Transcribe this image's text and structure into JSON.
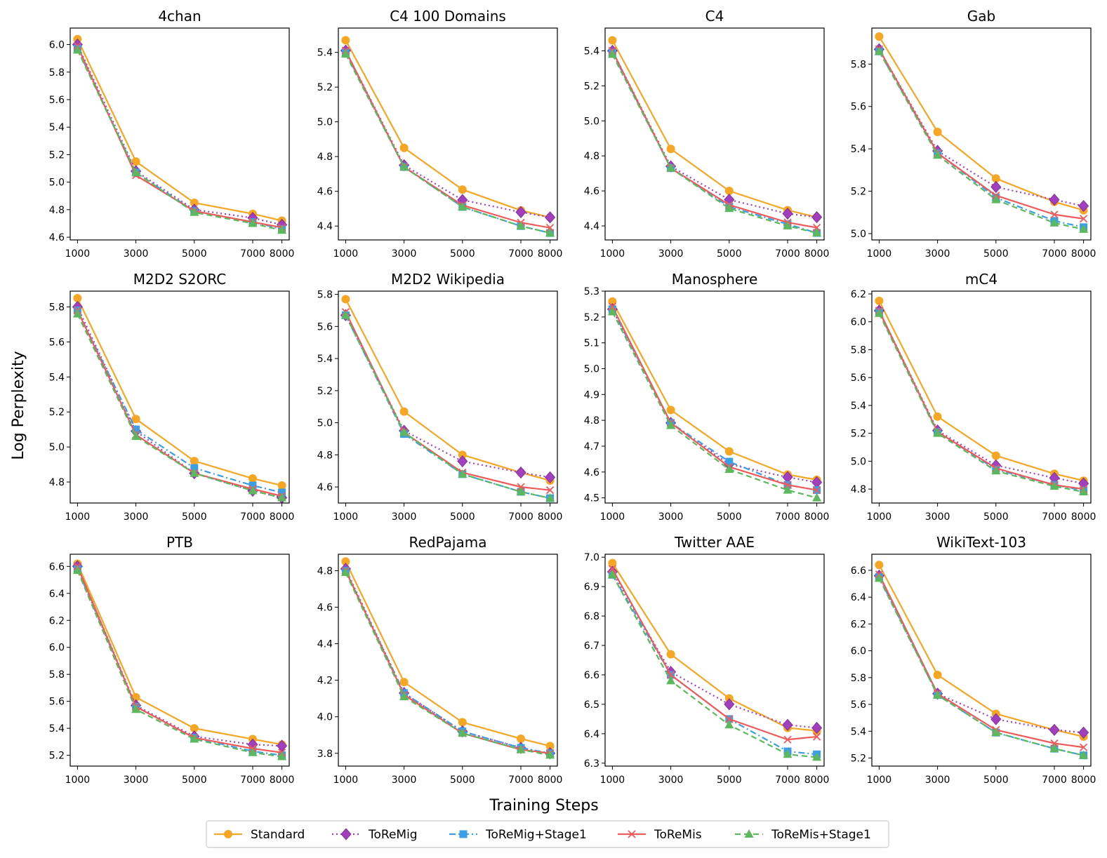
{
  "figure": {
    "ylabel": "Log Perplexity",
    "xlabel": "Training Steps"
  },
  "legend": {
    "placement": "bottom-center",
    "entries": [
      {
        "name": "Standard",
        "color": "#f5a623",
        "marker": "circle",
        "dash": "solid"
      },
      {
        "name": "ToReMig",
        "color": "#a23fbf",
        "marker": "diamond",
        "dash": "dotted"
      },
      {
        "name": "ToReMig+Stage1",
        "color": "#3b9fe8",
        "marker": "square",
        "dash": "dashdot"
      },
      {
        "name": "ToReMis",
        "color": "#ee5a5a",
        "marker": "x",
        "dash": "solid"
      },
      {
        "name": "ToReMis+Stage1",
        "color": "#5cb85c",
        "marker": "triangle",
        "dash": "dashed"
      }
    ]
  },
  "chart_data": [
    {
      "type": "line",
      "title": "4chan",
      "x": [
        1000,
        3000,
        5000,
        7000,
        8000
      ],
      "ylim": [
        4.58,
        6.12
      ],
      "yticks": [
        "4.6",
        "4.8",
        "5.0",
        "5.2",
        "5.4",
        "5.6",
        "5.8",
        "6.0"
      ],
      "ytick_values": [
        4.6,
        4.8,
        5.0,
        5.2,
        5.4,
        5.6,
        5.8,
        6.0
      ],
      "series": [
        {
          "name": "Standard",
          "values": [
            6.04,
            5.15,
            4.85,
            4.77,
            4.72
          ]
        },
        {
          "name": "ToReMig",
          "values": [
            6.0,
            5.08,
            4.8,
            4.74,
            4.69
          ]
        },
        {
          "name": "ToReMig+Stage1",
          "values": [
            5.97,
            5.07,
            4.79,
            4.71,
            4.66
          ]
        },
        {
          "name": "ToReMis",
          "values": [
            5.99,
            5.05,
            4.79,
            4.71,
            4.67
          ]
        },
        {
          "name": "ToReMis+Stage1",
          "values": [
            5.96,
            5.07,
            4.78,
            4.7,
            4.65
          ]
        }
      ]
    },
    {
      "type": "line",
      "title": "C4 100 Domains",
      "x": [
        1000,
        3000,
        5000,
        7000,
        8000
      ],
      "ylim": [
        4.32,
        5.54
      ],
      "yticks": [
        "4.4",
        "4.6",
        "4.8",
        "5.0",
        "5.2",
        "5.4"
      ],
      "ytick_values": [
        4.4,
        4.6,
        4.8,
        5.0,
        5.2,
        5.4
      ],
      "series": [
        {
          "name": "Standard",
          "values": [
            5.47,
            4.85,
            4.61,
            4.49,
            4.45
          ]
        },
        {
          "name": "ToReMig",
          "values": [
            5.41,
            4.75,
            4.55,
            4.48,
            4.45
          ]
        },
        {
          "name": "ToReMig+Stage1",
          "values": [
            5.4,
            4.74,
            4.51,
            4.4,
            4.36
          ]
        },
        {
          "name": "ToReMis",
          "values": [
            5.41,
            4.74,
            4.52,
            4.42,
            4.39
          ]
        },
        {
          "name": "ToReMis+Stage1",
          "values": [
            5.39,
            4.74,
            4.51,
            4.4,
            4.36
          ]
        }
      ]
    },
    {
      "type": "line",
      "title": "C4",
      "x": [
        1000,
        3000,
        5000,
        7000,
        8000
      ],
      "ylim": [
        4.32,
        5.53
      ],
      "yticks": [
        "4.4",
        "4.6",
        "4.8",
        "5.0",
        "5.2",
        "5.4"
      ],
      "ytick_values": [
        4.4,
        4.6,
        4.8,
        5.0,
        5.2,
        5.4
      ],
      "series": [
        {
          "name": "Standard",
          "values": [
            5.46,
            4.84,
            4.6,
            4.49,
            4.45
          ]
        },
        {
          "name": "ToReMig",
          "values": [
            5.4,
            4.74,
            4.55,
            4.47,
            4.45
          ]
        },
        {
          "name": "ToReMig+Stage1",
          "values": [
            5.39,
            4.73,
            4.51,
            4.41,
            4.36
          ]
        },
        {
          "name": "ToReMis",
          "values": [
            5.4,
            4.73,
            4.52,
            4.42,
            4.39
          ]
        },
        {
          "name": "ToReMis+Stage1",
          "values": [
            5.38,
            4.73,
            4.5,
            4.4,
            4.36
          ]
        }
      ]
    },
    {
      "type": "line",
      "title": "Gab",
      "x": [
        1000,
        3000,
        5000,
        7000,
        8000
      ],
      "ylim": [
        4.97,
        5.97
      ],
      "yticks": [
        "5.0",
        "5.2",
        "5.4",
        "5.6",
        "5.8"
      ],
      "ytick_values": [
        5.0,
        5.2,
        5.4,
        5.6,
        5.8
      ],
      "series": [
        {
          "name": "Standard",
          "values": [
            5.93,
            5.48,
            5.26,
            5.15,
            5.11
          ]
        },
        {
          "name": "ToReMig",
          "values": [
            5.87,
            5.39,
            5.22,
            5.16,
            5.13
          ]
        },
        {
          "name": "ToReMig+Stage1",
          "values": [
            5.86,
            5.38,
            5.17,
            5.06,
            5.03
          ]
        },
        {
          "name": "ToReMis",
          "values": [
            5.87,
            5.38,
            5.18,
            5.09,
            5.07
          ]
        },
        {
          "name": "ToReMis+Stage1",
          "values": [
            5.86,
            5.37,
            5.16,
            5.05,
            5.02
          ]
        }
      ]
    },
    {
      "type": "line",
      "title": "M2D2 S2ORC",
      "x": [
        1000,
        3000,
        5000,
        7000,
        8000
      ],
      "ylim": [
        4.68,
        5.89
      ],
      "yticks": [
        "4.8",
        "5.0",
        "5.2",
        "5.4",
        "5.6",
        "5.8"
      ],
      "ytick_values": [
        4.8,
        5.0,
        5.2,
        5.4,
        5.6,
        5.8
      ],
      "series": [
        {
          "name": "Standard",
          "values": [
            5.85,
            5.16,
            4.92,
            4.82,
            4.78
          ]
        },
        {
          "name": "ToReMig",
          "values": [
            5.8,
            5.09,
            4.85,
            4.75,
            4.71
          ]
        },
        {
          "name": "ToReMig+Stage1",
          "values": [
            5.78,
            5.1,
            4.88,
            4.78,
            4.74
          ]
        },
        {
          "name": "ToReMis",
          "values": [
            5.78,
            5.07,
            4.85,
            4.76,
            4.72
          ]
        },
        {
          "name": "ToReMis+Stage1",
          "values": [
            5.76,
            5.06,
            4.85,
            4.75,
            4.71
          ]
        }
      ]
    },
    {
      "type": "line",
      "title": "M2D2 Wikipedia",
      "x": [
        1000,
        3000,
        5000,
        7000,
        8000
      ],
      "ylim": [
        4.5,
        5.82
      ],
      "yticks": [
        "4.6",
        "4.8",
        "5.0",
        "5.2",
        "5.4",
        "5.6",
        "5.8"
      ],
      "ytick_values": [
        4.6,
        4.8,
        5.0,
        5.2,
        5.4,
        5.6,
        5.8
      ],
      "series": [
        {
          "name": "Standard",
          "values": [
            5.77,
            5.07,
            4.8,
            4.69,
            4.64
          ]
        },
        {
          "name": "ToReMig",
          "values": [
            5.67,
            4.95,
            4.76,
            4.69,
            4.66
          ]
        },
        {
          "name": "ToReMig+Stage1",
          "values": [
            5.67,
            4.93,
            4.68,
            4.57,
            4.53
          ]
        },
        {
          "name": "ToReMis",
          "values": [
            5.69,
            4.94,
            4.69,
            4.6,
            4.58
          ]
        },
        {
          "name": "ToReMis+Stage1",
          "values": [
            5.67,
            4.94,
            4.68,
            4.57,
            4.53
          ]
        }
      ]
    },
    {
      "type": "line",
      "title": "Manosphere",
      "x": [
        1000,
        3000,
        5000,
        7000,
        8000
      ],
      "ylim": [
        4.48,
        5.3
      ],
      "yticks": [
        "4.5",
        "4.6",
        "4.7",
        "4.8",
        "4.9",
        "5.0",
        "5.1",
        "5.2",
        "5.3"
      ],
      "ytick_values": [
        4.5,
        4.6,
        4.7,
        4.8,
        4.9,
        5.0,
        5.1,
        5.2,
        5.3
      ],
      "series": [
        {
          "name": "Standard",
          "values": [
            5.26,
            4.84,
            4.68,
            4.59,
            4.57
          ]
        },
        {
          "name": "ToReMig",
          "values": [
            5.23,
            4.79,
            4.63,
            4.58,
            4.56
          ]
        },
        {
          "name": "ToReMig+Stage1",
          "values": [
            5.23,
            4.79,
            4.64,
            4.55,
            4.53
          ]
        },
        {
          "name": "ToReMis",
          "values": [
            5.24,
            4.79,
            4.62,
            4.55,
            4.53
          ]
        },
        {
          "name": "ToReMis+Stage1",
          "values": [
            5.22,
            4.78,
            4.61,
            4.53,
            4.5
          ]
        }
      ]
    },
    {
      "type": "line",
      "title": "mC4",
      "x": [
        1000,
        3000,
        5000,
        7000,
        8000
      ],
      "ylim": [
        4.7,
        6.22
      ],
      "yticks": [
        "4.8",
        "5.0",
        "5.2",
        "5.4",
        "5.6",
        "5.8",
        "6.0",
        "6.2"
      ],
      "ytick_values": [
        4.8,
        5.0,
        5.2,
        5.4,
        5.6,
        5.8,
        6.0,
        6.2
      ],
      "series": [
        {
          "name": "Standard",
          "values": [
            6.15,
            5.32,
            5.04,
            4.91,
            4.86
          ]
        },
        {
          "name": "ToReMig",
          "values": [
            6.08,
            5.22,
            4.97,
            4.88,
            4.84
          ]
        },
        {
          "name": "ToReMig+Stage1",
          "values": [
            6.07,
            5.21,
            4.94,
            4.83,
            4.79
          ]
        },
        {
          "name": "ToReMis",
          "values": [
            6.08,
            5.21,
            4.95,
            4.83,
            4.8
          ]
        },
        {
          "name": "ToReMis+Stage1",
          "values": [
            6.06,
            5.2,
            4.93,
            4.82,
            4.78
          ]
        }
      ]
    },
    {
      "type": "line",
      "title": "PTB",
      "x": [
        1000,
        3000,
        5000,
        7000,
        8000
      ],
      "ylim": [
        5.12,
        6.69
      ],
      "yticks": [
        "5.2",
        "5.4",
        "5.6",
        "5.8",
        "6.0",
        "6.2",
        "6.4",
        "6.6"
      ],
      "ytick_values": [
        5.2,
        5.4,
        5.6,
        5.8,
        6.0,
        6.2,
        6.4,
        6.6
      ],
      "series": [
        {
          "name": "Standard",
          "values": [
            6.62,
            5.63,
            5.4,
            5.32,
            5.28
          ]
        },
        {
          "name": "ToReMig",
          "values": [
            6.6,
            5.57,
            5.34,
            5.28,
            5.27
          ]
        },
        {
          "name": "ToReMig+Stage1",
          "values": [
            6.58,
            5.56,
            5.33,
            5.23,
            5.2
          ]
        },
        {
          "name": "ToReMis",
          "values": [
            6.6,
            5.56,
            5.33,
            5.25,
            5.22
          ]
        },
        {
          "name": "ToReMis+Stage1",
          "values": [
            6.57,
            5.54,
            5.32,
            5.22,
            5.19
          ]
        }
      ]
    },
    {
      "type": "line",
      "title": "RedPajama",
      "x": [
        1000,
        3000,
        5000,
        7000,
        8000
      ],
      "ylim": [
        3.73,
        4.89
      ],
      "yticks": [
        "3.8",
        "4.0",
        "4.2",
        "4.4",
        "4.6",
        "4.8"
      ],
      "ytick_values": [
        3.8,
        4.0,
        4.2,
        4.4,
        4.6,
        4.8
      ],
      "series": [
        {
          "name": "Standard",
          "values": [
            4.85,
            4.19,
            3.97,
            3.88,
            3.84
          ]
        },
        {
          "name": "ToReMig",
          "values": [
            4.81,
            4.13,
            3.92,
            3.83,
            3.8
          ]
        },
        {
          "name": "ToReMig+Stage1",
          "values": [
            4.8,
            4.13,
            3.92,
            3.83,
            3.8
          ]
        },
        {
          "name": "ToReMis",
          "values": [
            4.8,
            4.12,
            3.91,
            3.82,
            3.8
          ]
        },
        {
          "name": "ToReMis+Stage1",
          "values": [
            4.79,
            4.11,
            3.91,
            3.82,
            3.79
          ]
        }
      ]
    },
    {
      "type": "line",
      "title": "Twitter AAE",
      "x": [
        1000,
        3000,
        5000,
        7000,
        8000
      ],
      "ylim": [
        6.29,
        7.01
      ],
      "yticks": [
        "6.3",
        "6.4",
        "6.5",
        "6.6",
        "6.7",
        "6.8",
        "6.9",
        "7.0"
      ],
      "ytick_values": [
        6.3,
        6.4,
        6.5,
        6.6,
        6.7,
        6.8,
        6.9,
        7.0
      ],
      "series": [
        {
          "name": "Standard",
          "values": [
            6.98,
            6.67,
            6.52,
            6.42,
            6.41
          ]
        },
        {
          "name": "ToReMig",
          "values": [
            6.95,
            6.61,
            6.5,
            6.43,
            6.42
          ]
        },
        {
          "name": "ToReMig+Stage1",
          "values": [
            6.94,
            6.6,
            6.45,
            6.34,
            6.33
          ]
        },
        {
          "name": "ToReMis",
          "values": [
            6.96,
            6.6,
            6.45,
            6.38,
            6.39
          ]
        },
        {
          "name": "ToReMis+Stage1",
          "values": [
            6.94,
            6.58,
            6.43,
            6.33,
            6.32
          ]
        }
      ]
    },
    {
      "type": "line",
      "title": "WikiText-103",
      "x": [
        1000,
        3000,
        5000,
        7000,
        8000
      ],
      "ylim": [
        5.14,
        6.72
      ],
      "yticks": [
        "5.2",
        "5.4",
        "5.6",
        "5.8",
        "6.0",
        "6.2",
        "6.4",
        "6.6"
      ],
      "ytick_values": [
        5.2,
        5.4,
        5.6,
        5.8,
        6.0,
        6.2,
        6.4,
        6.6
      ],
      "series": [
        {
          "name": "Standard",
          "values": [
            6.64,
            5.82,
            5.53,
            5.41,
            5.36
          ]
        },
        {
          "name": "ToReMig",
          "values": [
            6.56,
            5.68,
            5.49,
            5.41,
            5.39
          ]
        },
        {
          "name": "ToReMig+Stage1",
          "values": [
            6.55,
            5.67,
            5.39,
            5.27,
            5.22
          ]
        },
        {
          "name": "ToReMis",
          "values": [
            6.57,
            5.68,
            5.41,
            5.31,
            5.28
          ]
        },
        {
          "name": "ToReMis+Stage1",
          "values": [
            6.54,
            5.67,
            5.39,
            5.27,
            5.22
          ]
        }
      ]
    }
  ]
}
